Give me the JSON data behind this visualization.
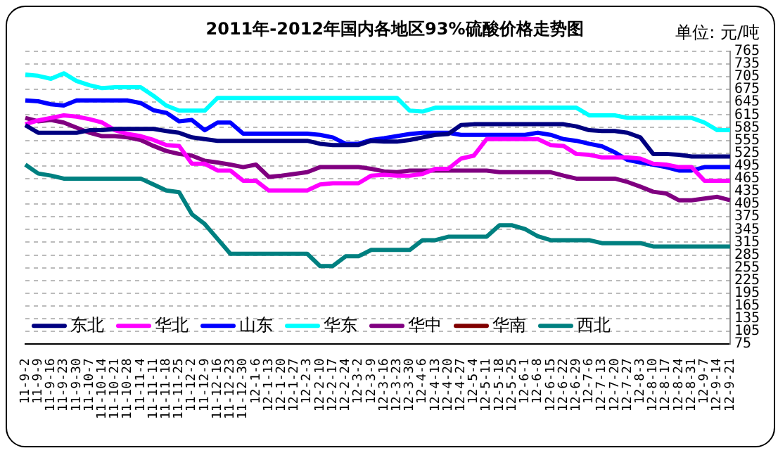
{
  "chart_data": {
    "type": "line",
    "title": "2011年-2012年国内各地区93%硫酸价格走势图",
    "annotations": [
      "单位: 元/吨"
    ],
    "categories": [
      "11-9-2",
      "11-9-9",
      "11-9-16",
      "11-9-23",
      "11-9-30",
      "11-10-7",
      "11-10-14",
      "11-10-21",
      "11-10-28",
      "11-11-4",
      "11-11-11",
      "11-11-18",
      "11-11-25",
      "11-12-2",
      "11-12-9",
      "11-12-16",
      "11-12-23",
      "11-12-30",
      "12-1-6",
      "12-1-13",
      "12-1-20",
      "12-1-27",
      "12-2-3",
      "12-2-10",
      "12-2-17",
      "12-2-24",
      "12-3-2",
      "12-3-9",
      "12-3-16",
      "12-3-23",
      "12-3-30",
      "12-4-6",
      "12-4-13",
      "12-4-20",
      "12-4-27",
      "12-5-4",
      "12-5-11",
      "12-5-18",
      "12-5-25",
      "12-6-1",
      "12-6-8",
      "12-6-15",
      "12-6-22",
      "12-6-29",
      "12-7-6",
      "12-7-13",
      "12-7-20",
      "12-7-27",
      "12-8-3",
      "12-8-10",
      "12-8-17",
      "12-8-24",
      "12-8-31",
      "12-9-7",
      "12-9-14",
      "12-9-21"
    ],
    "series": [
      {
        "name": "东北",
        "color": "#000080",
        "values": [
          591,
          573,
          573,
          573,
          573,
          579,
          579,
          582,
          582,
          582,
          582,
          577,
          573,
          562,
          558,
          554,
          554,
          554,
          554,
          554,
          554,
          554,
          554,
          547,
          544,
          544,
          544,
          554,
          552,
          552,
          556,
          562,
          568,
          570,
          591,
          593,
          593,
          593,
          593,
          593,
          593,
          593,
          593,
          588,
          579,
          577,
          577,
          573,
          562,
          523,
          523,
          521,
          517,
          517,
          517,
          517
        ]
      },
      {
        "name": "华北",
        "color": "#ff00ff",
        "values": [
          593,
          602,
          608,
          614,
          611,
          605,
          597,
          579,
          570,
          565,
          556,
          544,
          542,
          500,
          500,
          484,
          484,
          460,
          460,
          437,
          437,
          437,
          437,
          451,
          454,
          454,
          454,
          472,
          474,
          472,
          472,
          476,
          488,
          488,
          512,
          519,
          558,
          558,
          558,
          558,
          558,
          544,
          542,
          523,
          521,
          515,
          515,
          515,
          512,
          500,
          498,
          492,
          492,
          460,
          460,
          460
        ]
      },
      {
        "name": "山东",
        "color": "#0000ff",
        "values": [
          649,
          647,
          640,
          637,
          649,
          649,
          649,
          649,
          649,
          643,
          626,
          620,
          600,
          603,
          579,
          597,
          597,
          571,
          571,
          571,
          571,
          571,
          571,
          568,
          562,
          547,
          547,
          556,
          560,
          565,
          570,
          573,
          573,
          573,
          568,
          568,
          568,
          568,
          568,
          568,
          573,
          568,
          558,
          554,
          547,
          541,
          527,
          509,
          503,
          498,
          492,
          484,
          484,
          492,
          492,
          492
        ]
      },
      {
        "name": "华东",
        "color": "#00ffff",
        "values": [
          710,
          707,
          700,
          713,
          695,
          685,
          678,
          680,
          680,
          680,
          660,
          637,
          625,
          625,
          625,
          655,
          655,
          655,
          655,
          655,
          655,
          655,
          655,
          655,
          655,
          655,
          655,
          655,
          655,
          655,
          625,
          623,
          632,
          632,
          632,
          632,
          632,
          632,
          632,
          632,
          632,
          632,
          632,
          632,
          614,
          614,
          614,
          608,
          608,
          608,
          608,
          608,
          608,
          597,
          579,
          579
        ]
      },
      {
        "name": "华中",
        "color": "#800080",
        "values": [
          608,
          600,
          603,
          597,
          585,
          573,
          565,
          565,
          562,
          556,
          542,
          530,
          523,
          519,
          507,
          503,
          498,
          492,
          498,
          469,
          472,
          476,
          480,
          492,
          492,
          492,
          492,
          488,
          482,
          480,
          484,
          484,
          484,
          484,
          484,
          484,
          484,
          480,
          480,
          480,
          480,
          480,
          472,
          465,
          465,
          465,
          465,
          457,
          446,
          434,
          430,
          414,
          414,
          418,
          422,
          414
        ]
      },
      {
        "name": "华南",
        "color": "#800000",
        "values": [
          null,
          null,
          null,
          null,
          null,
          null,
          null,
          null,
          null,
          null,
          null,
          null,
          null,
          null,
          null,
          null,
          null,
          null,
          null,
          null,
          null,
          null,
          null,
          null,
          null,
          null,
          null,
          null,
          null,
          null,
          null,
          null,
          null,
          null,
          null,
          null,
          null,
          null,
          null,
          null,
          null,
          null,
          null,
          null,
          null,
          null,
          null,
          null,
          null,
          null,
          null,
          null,
          null,
          null,
          null,
          null
        ]
      },
      {
        "name": "西北",
        "color": "#008080",
        "values": [
          498,
          477,
          472,
          465,
          465,
          465,
          465,
          465,
          465,
          465,
          451,
          437,
          433,
          381,
          358,
          323,
          288,
          288,
          288,
          288,
          288,
          288,
          288,
          259,
          259,
          282,
          282,
          297,
          297,
          297,
          297,
          320,
          320,
          328,
          328,
          328,
          328,
          355,
          355,
          346,
          329,
          320,
          320,
          320,
          320,
          313,
          313,
          313,
          313,
          305,
          305,
          305,
          305,
          305,
          305,
          305
        ]
      }
    ],
    "ylim": [
      75,
      765
    ],
    "yticks": [
      75,
      105,
      135,
      165,
      195,
      225,
      255,
      285,
      315,
      345,
      375,
      405,
      435,
      465,
      495,
      525,
      555,
      585,
      615,
      645,
      675,
      705,
      735,
      765
    ],
    "grid": "y",
    "legend": "bottom",
    "marker": "none",
    "line_style": "solid"
  }
}
